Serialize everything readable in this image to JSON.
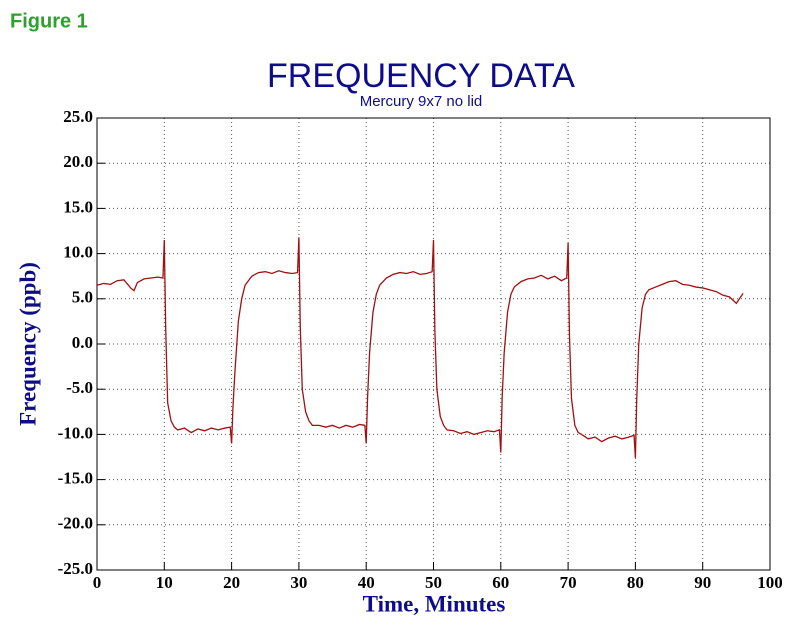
{
  "figure_label": "Figure 1",
  "chart_data": {
    "type": "line",
    "title": "FREQUENCY DATA",
    "subtitle": "Mercury 9x7 no lid",
    "xlabel": "Time, Minutes",
    "ylabel": "Frequency (ppb)",
    "xlim": [
      0,
      100
    ],
    "xticks": [
      0,
      10,
      20,
      30,
      40,
      50,
      60,
      70,
      80,
      90,
      100
    ],
    "ylim": [
      -25,
      25
    ],
    "yticks": [
      {
        "value": -25,
        "label": "-25.0"
      },
      {
        "value": -20,
        "label": "-20.0"
      },
      {
        "value": -15,
        "label": "-15.0"
      },
      {
        "value": -10,
        "label": "-10.0"
      },
      {
        "value": -5,
        "label": "-5.0"
      },
      {
        "value": 0,
        "label": "0.0"
      },
      {
        "value": 5,
        "label": "5.0"
      },
      {
        "value": 10,
        "label": "10.0"
      },
      {
        "value": 15,
        "label": "15.0"
      },
      {
        "value": 20,
        "label": "20.0"
      },
      {
        "value": 25,
        "label": "25.0"
      }
    ],
    "grid": true,
    "color": "#a01010",
    "x": [
      0,
      1,
      2,
      3,
      4,
      5,
      5.5,
      6,
      7,
      8,
      9,
      9.8,
      10,
      10.2,
      10.5,
      11,
      11.5,
      12,
      13,
      14,
      15,
      16,
      17,
      18,
      19,
      19.8,
      20,
      20.2,
      20.5,
      21,
      21.5,
      22,
      23,
      24,
      25,
      26,
      27,
      28,
      29,
      29.8,
      30,
      30.2,
      30.5,
      31,
      31.5,
      32,
      33,
      34,
      35,
      36,
      37,
      38,
      39,
      39.8,
      40,
      40.2,
      40.5,
      41,
      41.5,
      42,
      43,
      44,
      45,
      46,
      47,
      48,
      49,
      49.8,
      50,
      50.2,
      50.5,
      51,
      51.5,
      52,
      53,
      54,
      55,
      56,
      57,
      58,
      59,
      59.8,
      60,
      60.2,
      60.5,
      61,
      61.5,
      62,
      63,
      64,
      65,
      66,
      67,
      68,
      69,
      69.8,
      70,
      70.2,
      70.5,
      71,
      71.5,
      72,
      73,
      74,
      75,
      76,
      77,
      78,
      79,
      79.8,
      80,
      80.2,
      80.5,
      81,
      81.5,
      82,
      83,
      84,
      85,
      86,
      87,
      88,
      89,
      90,
      91,
      92,
      93,
      94,
      95,
      96
    ],
    "values": [
      6.5,
      6.7,
      6.6,
      7,
      7.1,
      6.2,
      5.9,
      6.8,
      7.2,
      7.3,
      7.4,
      7.3,
      11.5,
      2,
      -6.5,
      -8.5,
      -9.2,
      -9.5,
      -9.3,
      -9.8,
      -9.4,
      -9.6,
      -9.3,
      -9.5,
      -9.3,
      -9.2,
      -11,
      -7,
      -3,
      2.5,
      5,
      6.5,
      7.5,
      7.9,
      8,
      7.8,
      8.1,
      7.9,
      7.8,
      7.9,
      11.8,
      2,
      -5,
      -7.5,
      -8.5,
      -9,
      -9,
      -9.2,
      -9,
      -9.3,
      -9,
      -9.2,
      -8.9,
      -9,
      -11,
      -6,
      -1,
      3.5,
      5.5,
      6.5,
      7.3,
      7.7,
      7.9,
      7.8,
      8,
      7.7,
      7.8,
      8,
      11.5,
      1.5,
      -5,
      -8,
      -9,
      -9.5,
      -9.6,
      -9.9,
      -9.7,
      -10,
      -9.8,
      -9.6,
      -9.7,
      -9.5,
      -12,
      -6,
      -1,
      3.5,
      5.5,
      6.3,
      6.9,
      7.2,
      7.3,
      7.6,
      7.2,
      7.5,
      7,
      7.3,
      11.2,
      1,
      -6,
      -9,
      -9.8,
      -10,
      -10.5,
      -10.3,
      -10.8,
      -10.4,
      -10.2,
      -10.5,
      -10.3,
      -10.1,
      -12.6,
      -6,
      0,
      4,
      5.5,
      6,
      6.3,
      6.6,
      6.9,
      7,
      6.6,
      6.5,
      6.3,
      6.2,
      6,
      5.8,
      5.4,
      5.2,
      4.5,
      5.6
    ]
  }
}
